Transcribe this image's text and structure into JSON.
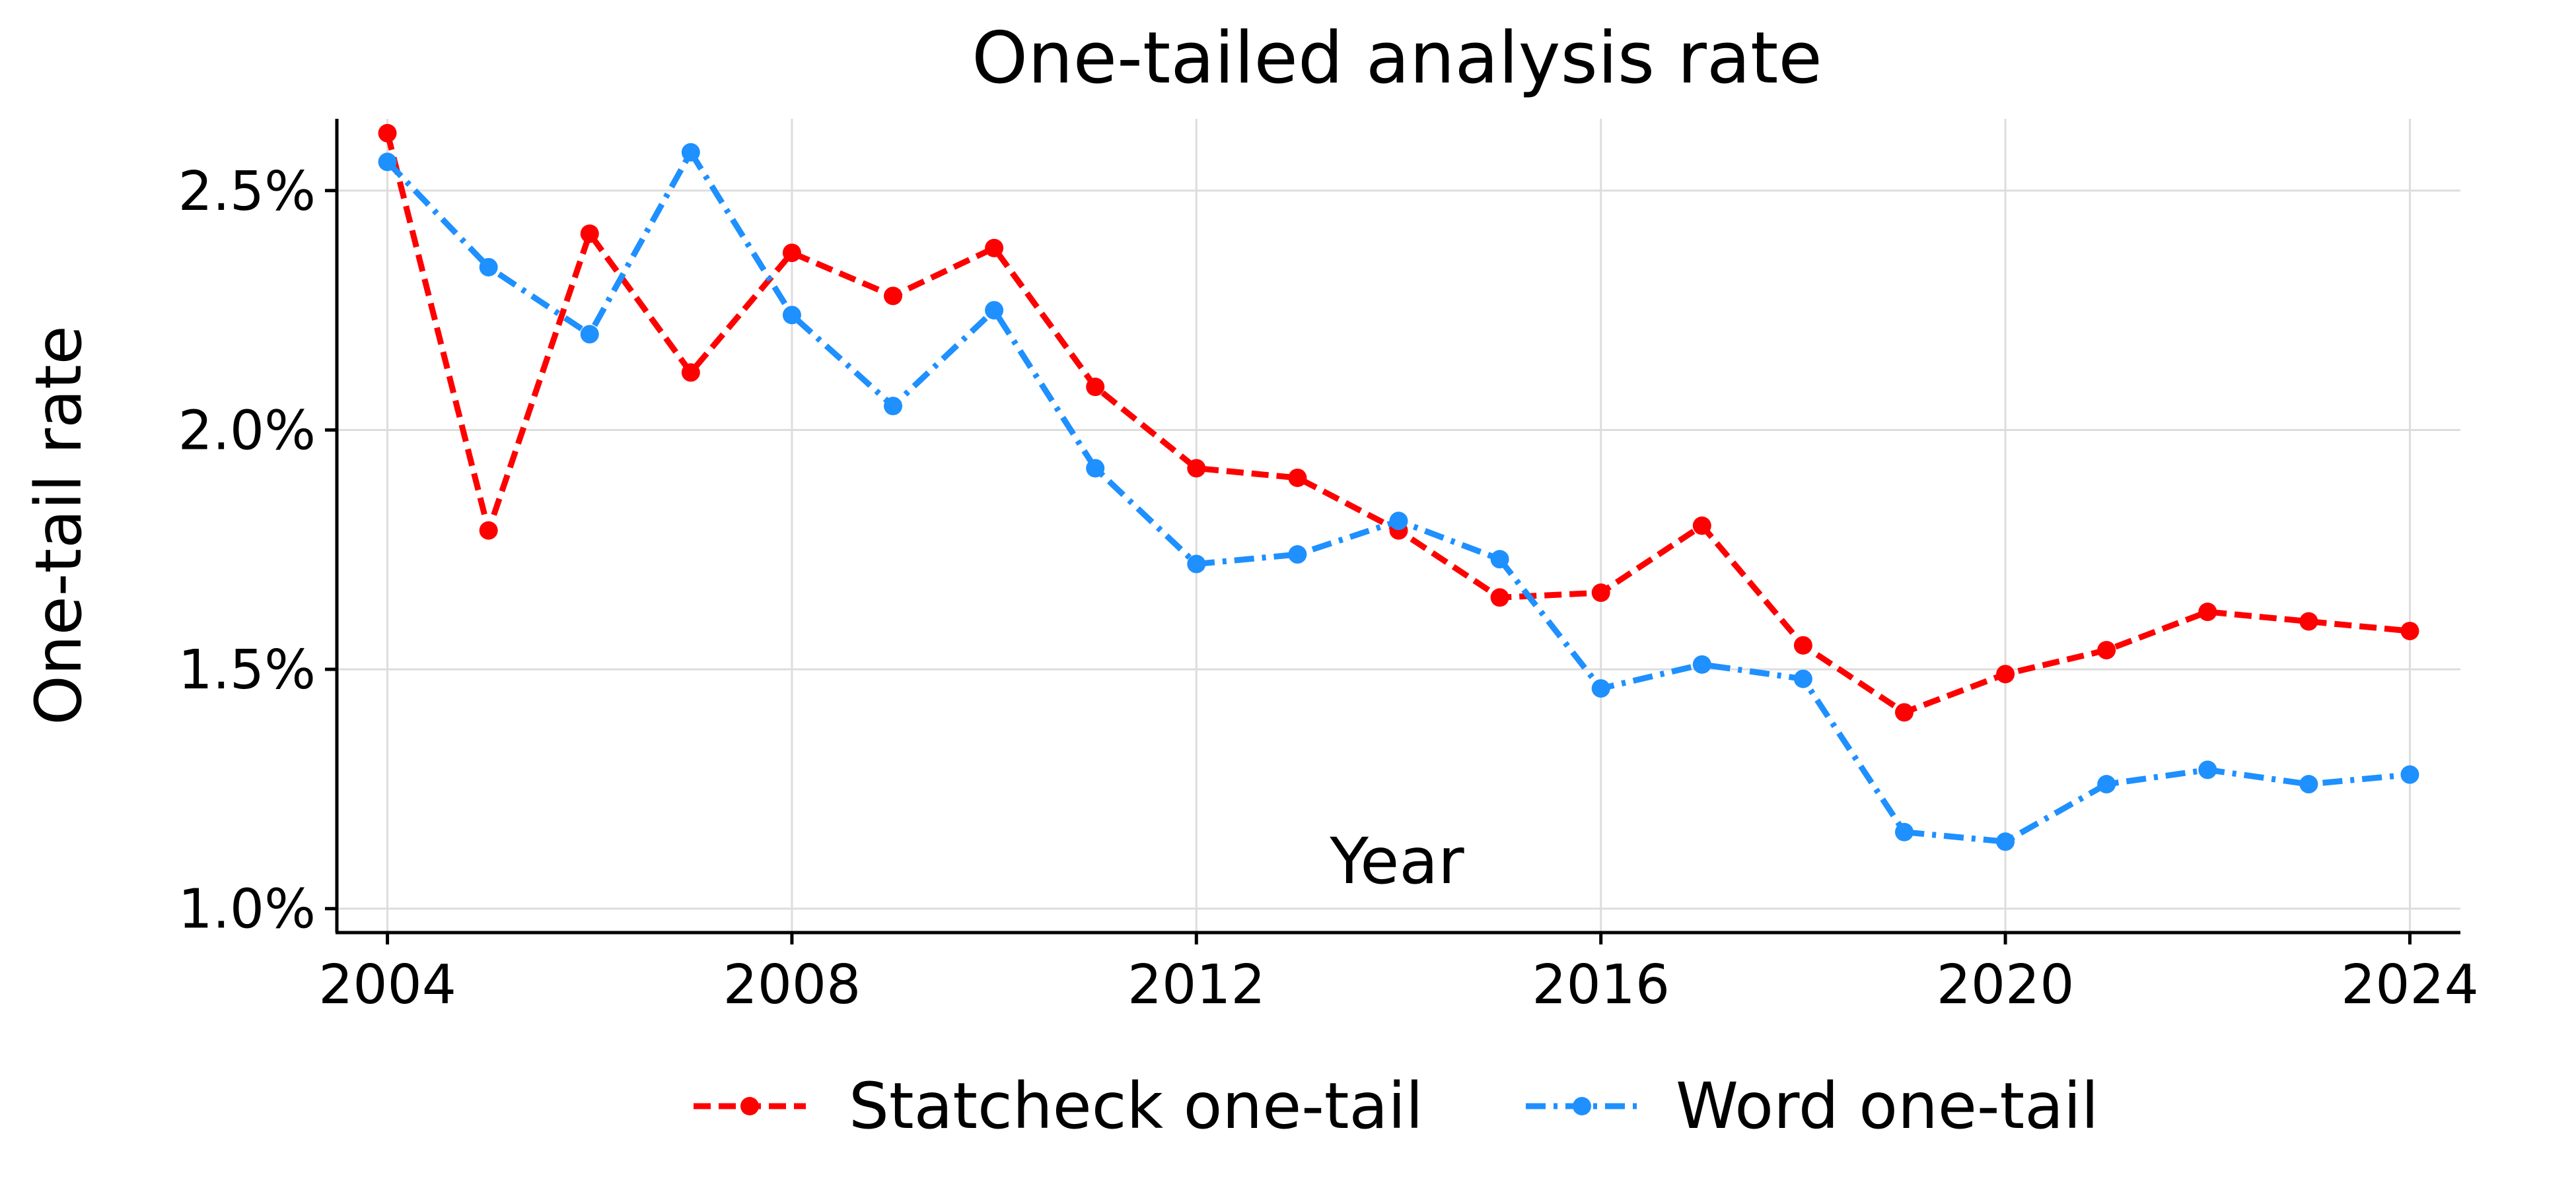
{
  "chart_data": {
    "type": "line",
    "title": "One-tailed analysis rate",
    "xlabel": "Year",
    "ylabel": "One-tail rate",
    "x": [
      2004,
      2005,
      2006,
      2007,
      2008,
      2009,
      2010,
      2011,
      2012,
      2013,
      2014,
      2015,
      2016,
      2017,
      2018,
      2019,
      2020,
      2021,
      2022,
      2023,
      2024
    ],
    "xlim": [
      2003.5,
      2024.5
    ],
    "ylim": [
      0.95,
      2.65
    ],
    "x_ticks": [
      2004,
      2008,
      2012,
      2016,
      2020,
      2024
    ],
    "x_tick_labels": [
      "2004",
      "2008",
      "2012",
      "2016",
      "2020",
      "2024"
    ],
    "y_ticks": [
      1.0,
      1.5,
      2.0,
      2.5
    ],
    "y_tick_labels": [
      "1.0%",
      "1.5%",
      "2.0%",
      "2.5%"
    ],
    "grid": true,
    "legend_position": "bottom-center",
    "series": [
      {
        "name": "Statcheck one-tail",
        "color": "#ff0000",
        "line_style": "dashed",
        "marker": "circle",
        "values": [
          2.62,
          1.79,
          2.41,
          2.12,
          2.37,
          2.28,
          2.38,
          2.09,
          1.92,
          1.9,
          1.79,
          1.65,
          1.66,
          1.8,
          1.55,
          1.41,
          1.49,
          1.54,
          1.62,
          1.6,
          1.58
        ]
      },
      {
        "name": "Word one-tail",
        "color": "#1e90ff",
        "line_style": "dashdot",
        "marker": "circle",
        "values": [
          2.56,
          2.34,
          2.2,
          2.58,
          2.24,
          2.05,
          2.25,
          1.92,
          1.72,
          1.74,
          1.81,
          1.73,
          1.46,
          1.51,
          1.48,
          1.16,
          1.14,
          1.26,
          1.29,
          1.26,
          1.28
        ]
      }
    ]
  }
}
